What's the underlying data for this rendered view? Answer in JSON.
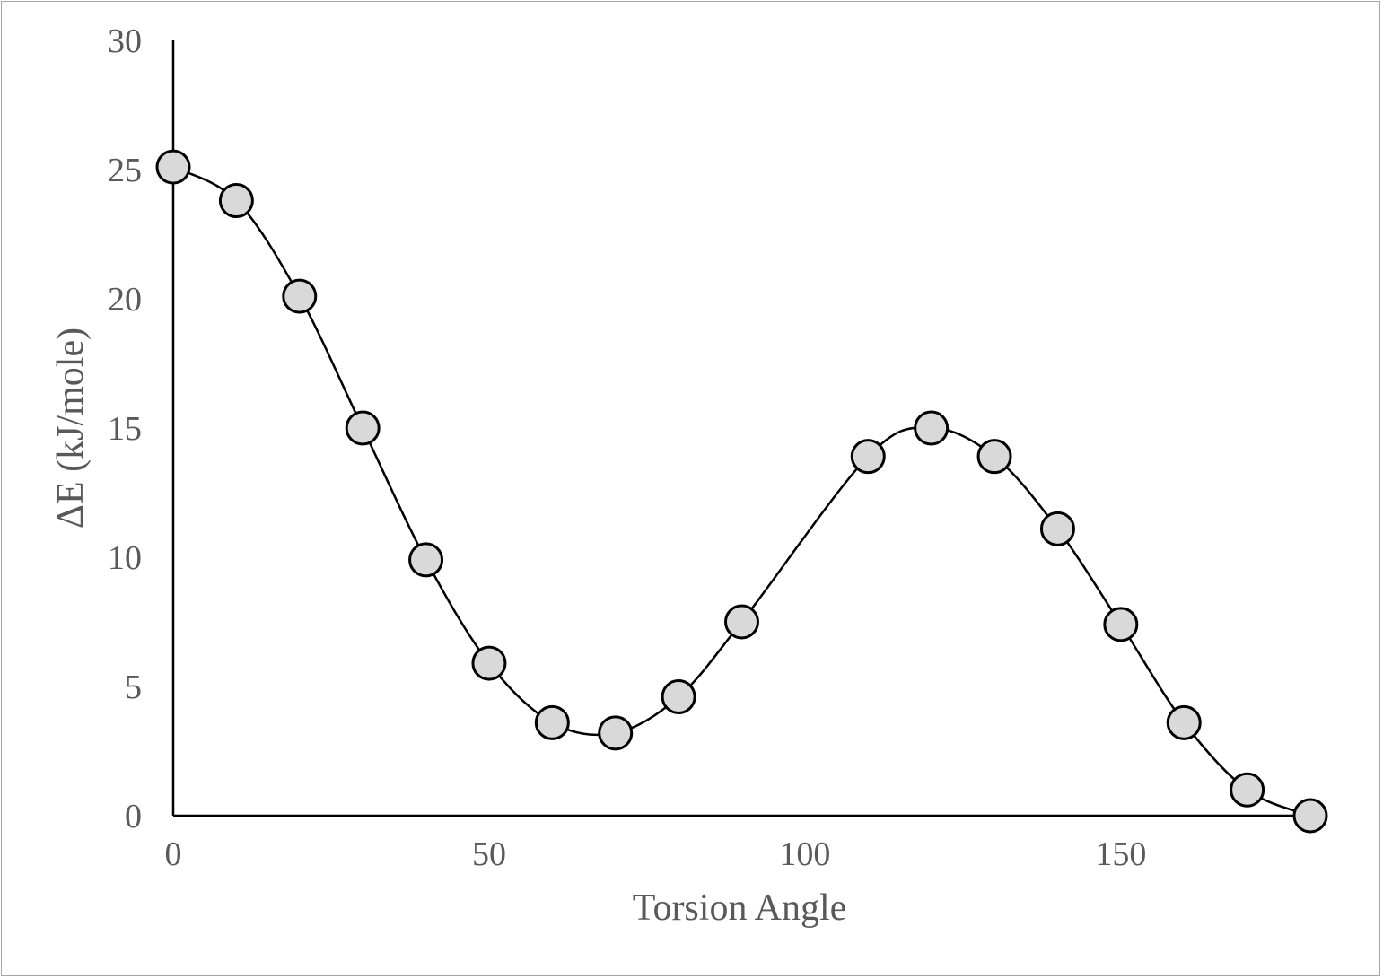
{
  "chart_data": {
    "type": "scatter",
    "title": "",
    "xlabel": "Torsion Angle",
    "ylabel": "ΔE (kJ/mole)",
    "xlim": [
      0,
      180
    ],
    "ylim": [
      0,
      30
    ],
    "xticks": [
      0,
      50,
      100,
      150
    ],
    "yticks": [
      0,
      5,
      10,
      15,
      20,
      25,
      30
    ],
    "grid": false,
    "legend": "none",
    "smooth_line": true,
    "marker_fill": "#d9d9d9",
    "marker_stroke": "#000000",
    "line_color": "#000000",
    "text_color": "#595959",
    "series": [
      {
        "x": [
          0,
          10,
          20,
          30,
          40,
          50,
          60,
          70,
          80,
          90,
          110,
          120,
          130,
          140,
          150,
          160,
          170,
          180
        ],
        "y": [
          25.1,
          23.8,
          20.1,
          15.0,
          9.9,
          5.9,
          3.6,
          3.2,
          4.6,
          7.5,
          13.9,
          15.0,
          13.9,
          11.1,
          7.4,
          3.6,
          1.0,
          0.0
        ]
      }
    ]
  }
}
